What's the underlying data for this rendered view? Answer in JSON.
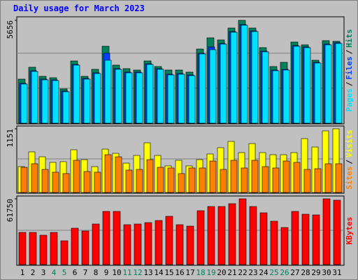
{
  "title": "Daily usage for March 2023",
  "legend_separator": "/",
  "category_colors": [
    "#000000",
    "#000000",
    "#000000",
    "#00805c",
    "#00805c",
    "#000000",
    "#000000",
    "#000000",
    "#000000",
    "#000000",
    "#00805c",
    "#00805c",
    "#000000",
    "#000000",
    "#000000",
    "#000000",
    "#000000",
    "#00805c",
    "#00805c",
    "#000000",
    "#000000",
    "#000000",
    "#000000",
    "#000000",
    "#00805c",
    "#00805c",
    "#000000",
    "#000000",
    "#000000",
    "#000000",
    "#000000"
  ],
  "chart_data": [
    {
      "type": "bar",
      "ylim": [
        0,
        5656
      ],
      "yticks": [
        5656
      ],
      "series": [
        {
          "name": "Hits",
          "color": "#00805c",
          "values": [
            2424,
            3078,
            2578,
            2501,
            1885,
            3424,
            2578,
            2963,
            4232,
            3194,
            3001,
            2924,
            3424,
            3117,
            2924,
            2924,
            2809,
            4079,
            4694,
            4579,
            5233,
            5656,
            5233,
            4155,
            3117,
            3347,
            4463,
            4309,
            3463,
            4540,
            4502
          ]
        },
        {
          "name": "Files",
          "color": "#0040ff",
          "values": [
            2193,
            2885,
            2423,
            2385,
            1769,
            3232,
            2462,
            2770,
            3848,
            3001,
            2808,
            2808,
            3270,
            3001,
            2693,
            2731,
            2654,
            3847,
            4194,
            4386,
            5040,
            5425,
            5078,
            3963,
            2924,
            2962,
            4270,
            4193,
            3347,
            4347,
            4424
          ]
        },
        {
          "name": "Pages",
          "color": "#00e0ff",
          "values": [
            2155,
            2847,
            2385,
            2347,
            1731,
            3194,
            2424,
            2732,
            3463,
            2963,
            2770,
            2770,
            3232,
            2963,
            2655,
            2693,
            2616,
            3809,
            4040,
            4348,
            5002,
            5387,
            5040,
            3925,
            2886,
            2924,
            4232,
            4155,
            3309,
            4309,
            4386
          ]
        }
      ]
    },
    {
      "type": "bar",
      "ylim": [
        0,
        1151
      ],
      "yticks": [
        1151
      ],
      "series": [
        {
          "name": "Visits",
          "color": "#ffff00",
          "values": [
            468,
            734,
            645,
            544,
            557,
            772,
            594,
            468,
            784,
            708,
            531,
            670,
            898,
            670,
            481,
            582,
            481,
            594,
            696,
            810,
            923,
            721,
            885,
            721,
            683,
            683,
            721,
            974,
            822,
            1113,
            1151
          ]
        },
        {
          "name": "Sites",
          "color": "#ff8000",
          "values": [
            455,
            519,
            417,
            367,
            342,
            582,
            379,
            367,
            683,
            645,
            405,
            417,
            594,
            455,
            443,
            342,
            443,
            443,
            569,
            417,
            582,
            443,
            582,
            468,
            443,
            569,
            544,
            417,
            430,
            519,
            519
          ]
        }
      ]
    },
    {
      "type": "bar",
      "ylim": [
        0,
        61750
      ],
      "yticks": [
        61750
      ],
      "categories": [
        "1",
        "2",
        "3",
        "4",
        "5",
        "6",
        "7",
        "8",
        "9",
        "10",
        "11",
        "12",
        "13",
        "14",
        "15",
        "16",
        "17",
        "18",
        "19",
        "20",
        "21",
        "22",
        "23",
        "24",
        "25",
        "26",
        "27",
        "28",
        "29",
        "30",
        "31"
      ],
      "series": [
        {
          "name": "KBytes",
          "color": "#ff0000",
          "values": [
            30222,
            30222,
            27594,
            30222,
            22338,
            34164,
            31536,
            38106,
            49932,
            49932,
            37449,
            38106,
            39420,
            41391,
            45333,
            37449,
            36135,
            50589,
            54531,
            54531,
            57159,
            61750,
            54531,
            48618,
            40734,
            34821,
            49932,
            47304,
            46647,
            61750,
            60444
          ]
        }
      ]
    }
  ]
}
